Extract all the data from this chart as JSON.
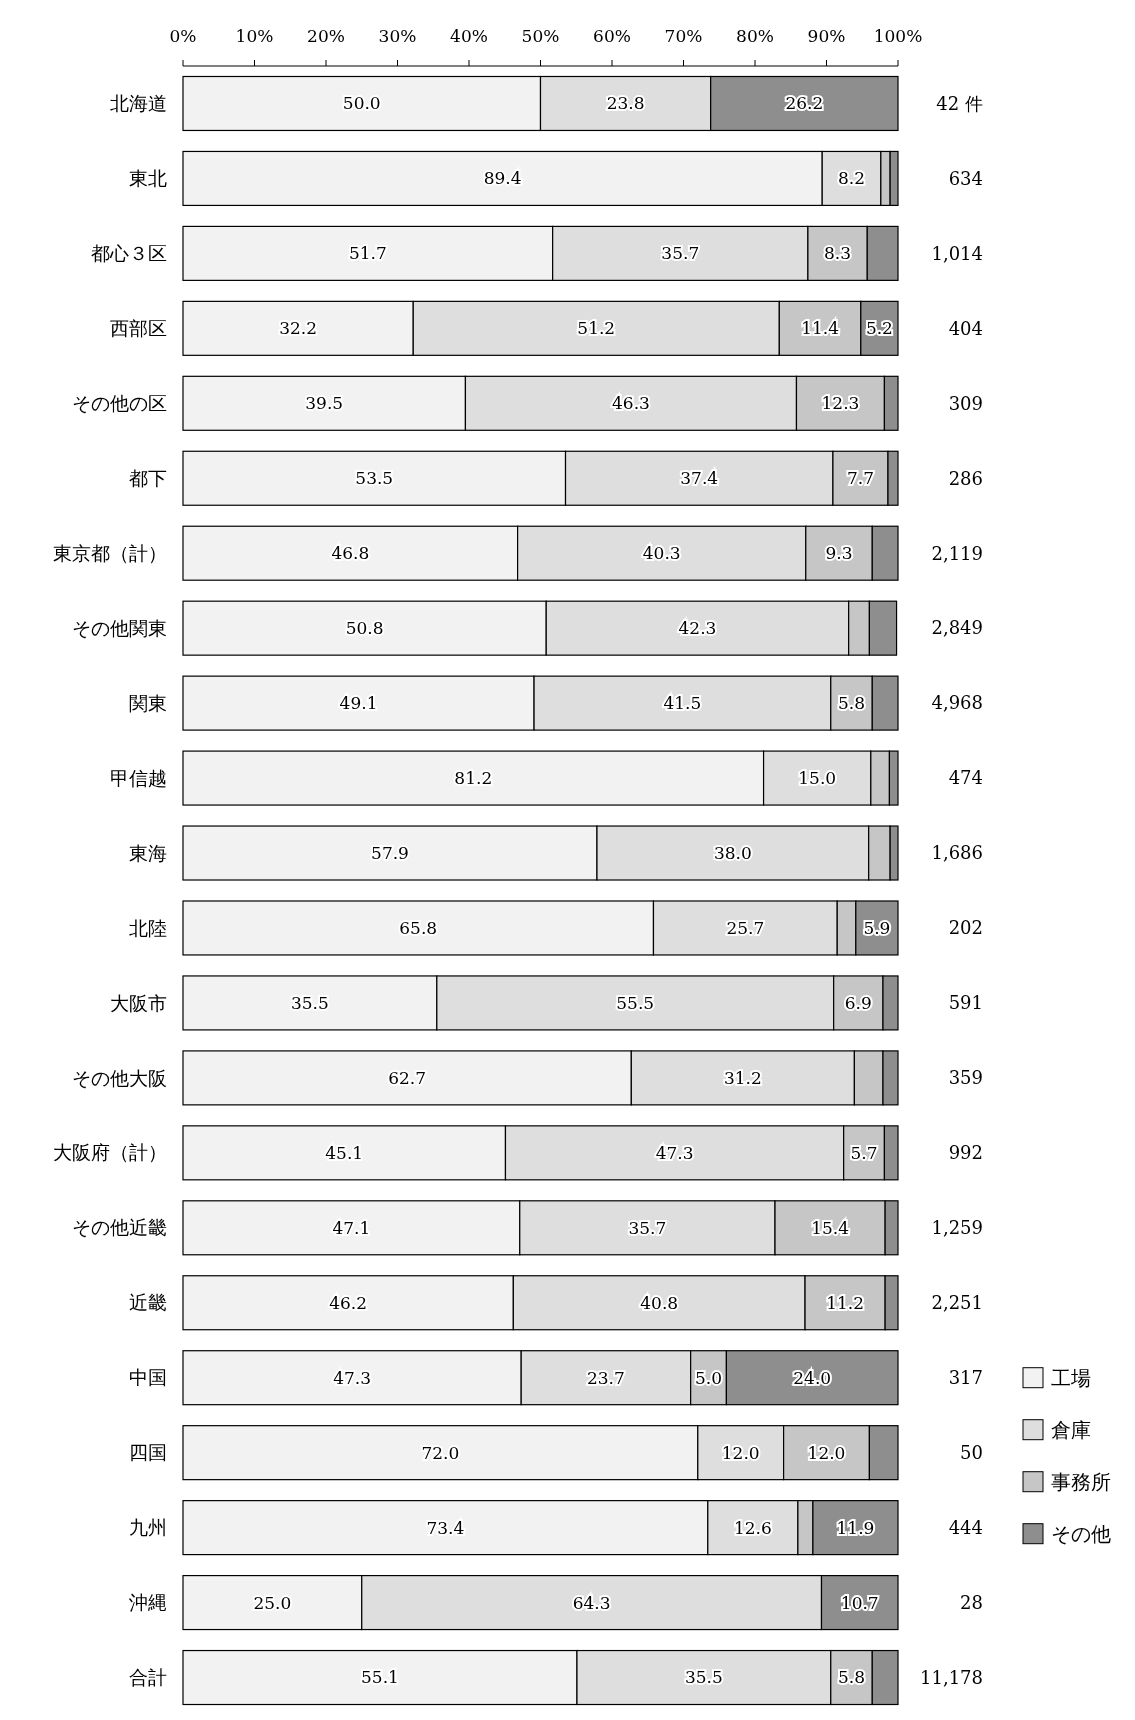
{
  "chart_data": {
    "type": "bar",
    "orientation": "horizontal",
    "stacked": true,
    "categories": [
      "北海道",
      "東北",
      "都心３区",
      "西部区",
      "その他の区",
      "都下",
      "東京都（計）",
      "その他関東",
      "関東",
      "甲信越",
      "東海",
      "北陸",
      "大阪市",
      "その他大阪",
      "大阪府（計）",
      "その他近畿",
      "近畿",
      "中国",
      "四国",
      "九州",
      "沖縄",
      "合計"
    ],
    "series": [
      {
        "name": "工場",
        "color": "#f2f2f2",
        "values": [
          50.0,
          89.4,
          51.7,
          32.2,
          39.5,
          53.5,
          46.8,
          50.8,
          49.1,
          81.2,
          57.9,
          65.8,
          35.5,
          62.7,
          45.1,
          47.1,
          46.2,
          47.3,
          72.0,
          73.4,
          25.0,
          55.1
        ],
        "value_labels": [
          "50.0",
          "89.4",
          "51.7",
          "32.2",
          "39.5",
          "53.5",
          "46.8",
          "50.8",
          "49.1",
          "81.2",
          "57.9",
          "65.8",
          "35.5",
          "62.7",
          "45.1",
          "47.1",
          "46.2",
          "47.3",
          "72.0",
          "73.4",
          "25.0",
          "55.1"
        ]
      },
      {
        "name": "倉庫",
        "color": "#dedede",
        "values": [
          23.8,
          8.2,
          35.7,
          51.2,
          46.3,
          37.4,
          40.3,
          42.3,
          41.5,
          15.0,
          38.0,
          25.7,
          55.5,
          31.2,
          47.3,
          35.7,
          40.8,
          23.7,
          12.0,
          12.6,
          64.3,
          35.5
        ],
        "value_labels": [
          "23.8",
          "8.2",
          "35.7",
          "51.2",
          "46.3",
          "37.4",
          "40.3",
          "42.3",
          "41.5",
          "15.0",
          "38.0",
          "25.7",
          "55.5",
          "31.2",
          "47.3",
          "35.7",
          "40.8",
          "23.7",
          "12.0",
          "12.6",
          "64.3",
          "35.5"
        ]
      },
      {
        "name": "事務所",
        "color": "#c6c6c6",
        "values": [
          0,
          1.3,
          8.3,
          11.4,
          12.3,
          7.7,
          9.3,
          2.9,
          5.8,
          2.6,
          3.0,
          2.6,
          6.9,
          4.0,
          5.7,
          15.4,
          11.2,
          5.0,
          12.0,
          2.1,
          0,
          5.8
        ],
        "value_labels": [
          null,
          null,
          "8.3",
          "11.4",
          "12.3",
          "7.7",
          "9.3",
          null,
          "5.8",
          null,
          null,
          null,
          "6.9",
          null,
          "5.7",
          "15.4",
          "11.2",
          "5.0",
          "12.0",
          null,
          null,
          "5.8"
        ]
      },
      {
        "name": "その他",
        "color": "#8e8e8e",
        "values": [
          26.2,
          1.1,
          4.3,
          5.2,
          1.9,
          1.4,
          3.6,
          3.8,
          3.6,
          1.2,
          1.1,
          5.9,
          2.1,
          2.1,
          1.9,
          1.8,
          1.8,
          24.0,
          4.0,
          11.9,
          10.7,
          3.6
        ],
        "value_labels": [
          "26.2",
          null,
          null,
          "5.2",
          null,
          null,
          null,
          null,
          null,
          null,
          null,
          "5.9",
          null,
          null,
          null,
          null,
          null,
          "24.0",
          null,
          "11.9",
          "10.7",
          null
        ]
      }
    ],
    "xlim": [
      0,
      100
    ],
    "xticks": [
      {
        "value": 0,
        "label": "0%"
      },
      {
        "value": 10,
        "label": "10%"
      },
      {
        "value": 20,
        "label": "20%"
      },
      {
        "value": 30,
        "label": "30%"
      },
      {
        "value": 40,
        "label": "40%"
      },
      {
        "value": 50,
        "label": "50%"
      },
      {
        "value": 60,
        "label": "60%"
      },
      {
        "value": 70,
        "label": "70%"
      },
      {
        "value": 80,
        "label": "80%"
      },
      {
        "value": 90,
        "label": "90%"
      },
      {
        "value": 100,
        "label": "100%"
      }
    ],
    "annotations": [
      "42 件",
      "634",
      "1,014",
      "404",
      "309",
      "286",
      "2,119",
      "2,849",
      "4,968",
      "474",
      "1,686",
      "202",
      "591",
      "359",
      "992",
      "1,259",
      "2,251",
      "317",
      "50",
      "444",
      "28",
      "11,178"
    ],
    "legend": "right",
    "grid": false
  }
}
